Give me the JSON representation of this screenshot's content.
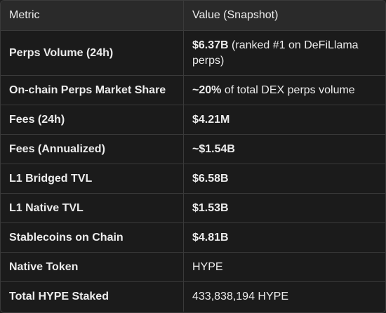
{
  "table": {
    "headers": {
      "metric": "Metric",
      "value": "Value (Snapshot)"
    },
    "rows": [
      {
        "metric": "Perps Volume (24h)",
        "value_bold": "$6.37B",
        "value_rest": " (ranked #1 on DeFiLlama perps)"
      },
      {
        "metric": "On-chain Perps Market Share",
        "value_bold": "~20%",
        "value_rest": " of total DEX perps volume"
      },
      {
        "metric": "Fees (24h)",
        "value_bold": "$4.21M",
        "value_rest": ""
      },
      {
        "metric": "Fees (Annualized)",
        "value_bold": "~$1.54B",
        "value_rest": ""
      },
      {
        "metric": "L1 Bridged TVL",
        "value_bold": "$6.58B",
        "value_rest": ""
      },
      {
        "metric": "L1 Native TVL",
        "value_bold": "$1.53B",
        "value_rest": ""
      },
      {
        "metric": "Stablecoins on Chain",
        "value_bold": "$4.81B",
        "value_rest": ""
      },
      {
        "metric": "Native Token",
        "value_bold": "",
        "value_rest": "HYPE"
      },
      {
        "metric": "Total HYPE Staked",
        "value_bold": "",
        "value_rest": "433,838,194 HYPE"
      }
    ]
  },
  "colors": {
    "background": "#1b1b1b",
    "header_background": "#2a2a2a",
    "border": "#3a3a3a",
    "text": "#ececec"
  }
}
